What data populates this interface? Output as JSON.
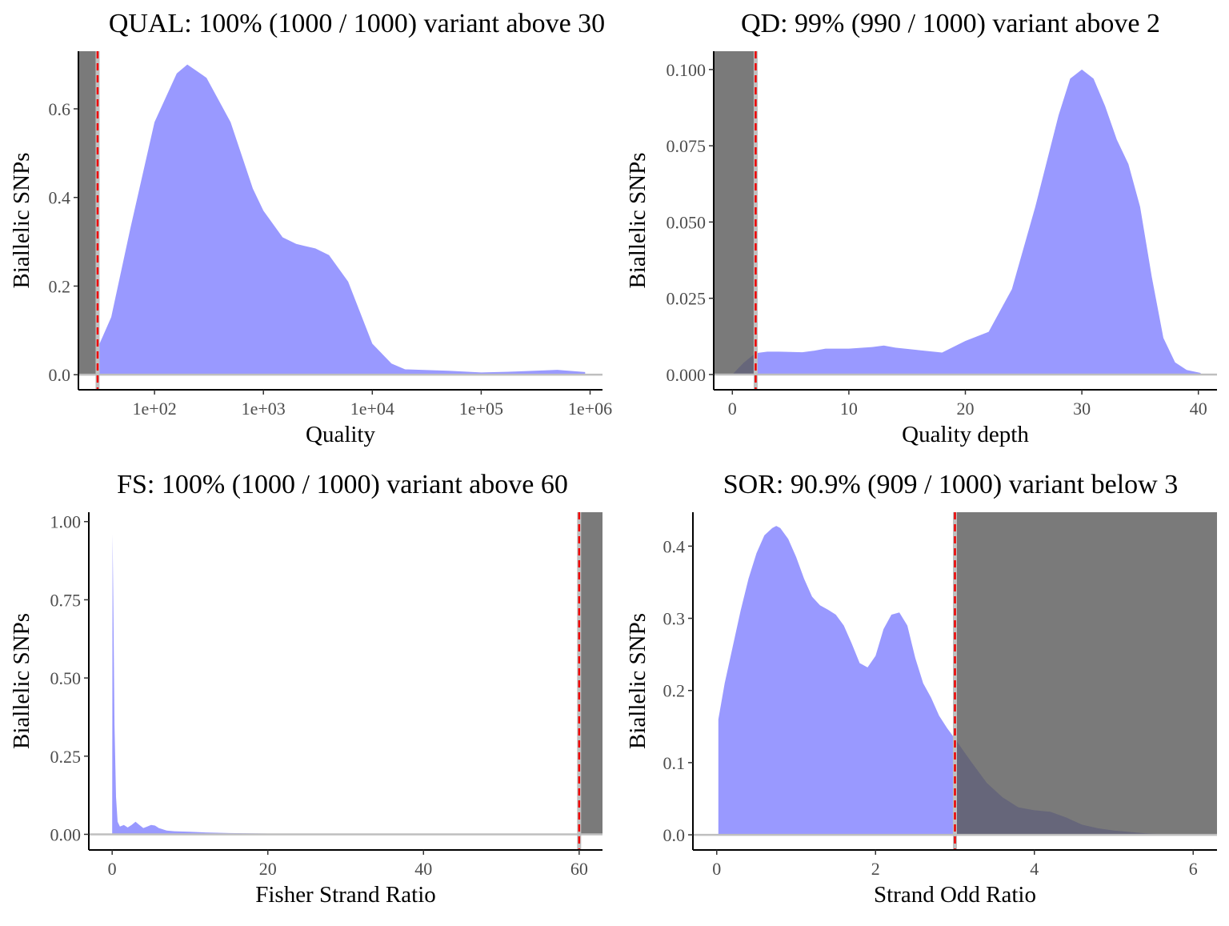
{
  "chart_data": [
    {
      "type": "area",
      "title": "QUAL: 100% (1000 / 1000) variant above 30",
      "xlabel": "Quality",
      "ylabel": "Biallelic SNPs",
      "xscale": "log10",
      "xlim": [
        20,
        1300000
      ],
      "ylim": [
        -0.034,
        0.73
      ],
      "x_ticks": [
        100,
        1000,
        10000,
        100000,
        1000000
      ],
      "x_tick_labels": [
        "1e+02",
        "1e+03",
        "1e+04",
        "1e+05",
        "1e+06"
      ],
      "y_ticks": [
        0,
        0.2,
        0.4,
        0.6
      ],
      "y_tick_labels": [
        "0.0",
        "0.2",
        "0.4",
        "0.6"
      ],
      "threshold": 30,
      "shade": "below",
      "density": {
        "x": [
          30,
          40,
          60,
          100,
          160,
          200,
          300,
          500,
          800,
          1000,
          1500,
          2000,
          3000,
          4000,
          6000,
          10000,
          15000,
          20000,
          50000,
          100000,
          200000,
          500000,
          900000
        ],
        "y": [
          0.06,
          0.13,
          0.33,
          0.57,
          0.68,
          0.7,
          0.67,
          0.57,
          0.42,
          0.37,
          0.31,
          0.295,
          0.285,
          0.27,
          0.21,
          0.07,
          0.025,
          0.012,
          0.009,
          0.005,
          0.007,
          0.011,
          0.006
        ]
      }
    },
    {
      "type": "area",
      "title": "QD: 99% (990 / 1000) variant above 2",
      "xlabel": "Quality depth",
      "ylabel": "Biallelic SNPs",
      "xlim": [
        -1.6,
        41.6
      ],
      "ylim": [
        -0.005,
        0.106
      ],
      "x_ticks": [
        0,
        10,
        20,
        30,
        40
      ],
      "x_tick_labels": [
        "0",
        "10",
        "20",
        "30",
        "40"
      ],
      "y_ticks": [
        0,
        0.025,
        0.05,
        0.075,
        0.1
      ],
      "y_tick_labels": [
        "0.000",
        "0.025",
        "0.050",
        "0.075",
        "0.100"
      ],
      "threshold": 2,
      "shade": "below",
      "density": {
        "x": [
          0,
          0.5,
          1,
          2,
          3,
          4,
          6,
          7,
          8,
          10,
          12,
          13,
          14,
          16,
          18,
          20,
          22,
          24,
          26,
          28,
          29,
          30,
          31,
          32,
          33,
          34,
          35,
          36,
          37,
          38,
          39,
          40.2
        ],
        "y": [
          0,
          0.002,
          0.004,
          0.007,
          0.0075,
          0.0075,
          0.0073,
          0.0078,
          0.0085,
          0.0085,
          0.009,
          0.0095,
          0.0088,
          0.008,
          0.0072,
          0.011,
          0.014,
          0.028,
          0.055,
          0.085,
          0.097,
          0.1,
          0.097,
          0.088,
          0.077,
          0.069,
          0.055,
          0.032,
          0.012,
          0.004,
          0.0015,
          0.0005
        ]
      }
    },
    {
      "type": "area",
      "title": "FS: 100% (1000 / 1000) variant above 60",
      "xlabel": "Fisher Strand Ratio",
      "ylabel": "Biallelic SNPs",
      "xlim": [
        -3,
        63
      ],
      "ylim": [
        -0.05,
        1.03
      ],
      "x_ticks": [
        0,
        20,
        40,
        60
      ],
      "x_tick_labels": [
        "0",
        "20",
        "40",
        "60"
      ],
      "y_ticks": [
        0,
        0.25,
        0.5,
        0.75,
        1
      ],
      "y_tick_labels": [
        "0.00",
        "0.25",
        "0.50",
        "0.75",
        "1.00"
      ],
      "threshold": 60,
      "shade": "above",
      "density": {
        "x": [
          0,
          0.05,
          0.15,
          0.3,
          0.5,
          0.7,
          1.0,
          1.5,
          2.0,
          2.5,
          3.0,
          3.5,
          4.0,
          4.5,
          5.0,
          5.5,
          6.0,
          7.0,
          8.0,
          10.0,
          12.0,
          15.0,
          18.0,
          22.0,
          27.0,
          35.0,
          45.0,
          52.0
        ],
        "y": [
          0.02,
          0.96,
          0.75,
          0.35,
          0.12,
          0.04,
          0.025,
          0.03,
          0.022,
          0.03,
          0.04,
          0.03,
          0.02,
          0.025,
          0.03,
          0.028,
          0.02,
          0.012,
          0.01,
          0.008,
          0.006,
          0.004,
          0.003,
          0.002,
          0.0015,
          0.001,
          0.001,
          0.0005
        ]
      }
    },
    {
      "type": "area",
      "title": "SOR: 90.9% (909 / 1000) variant below 3",
      "xlabel": "Strand Odd Ratio",
      "ylabel": "Biallelic SNPs",
      "xlim": [
        -0.3,
        6.3
      ],
      "ylim": [
        -0.021,
        0.447
      ],
      "x_ticks": [
        0,
        2,
        4,
        6
      ],
      "x_tick_labels": [
        "0",
        "2",
        "4",
        "6"
      ],
      "y_ticks": [
        0,
        0.1,
        0.2,
        0.3,
        0.4
      ],
      "y_tick_labels": [
        "0.0",
        "0.1",
        "0.2",
        "0.3",
        "0.4"
      ],
      "threshold": 3,
      "shade": "above",
      "density": {
        "x": [
          0.02,
          0.1,
          0.2,
          0.3,
          0.4,
          0.5,
          0.6,
          0.7,
          0.75,
          0.8,
          0.9,
          1.0,
          1.1,
          1.2,
          1.3,
          1.4,
          1.5,
          1.6,
          1.7,
          1.8,
          1.9,
          2.0,
          2.1,
          2.2,
          2.3,
          2.4,
          2.5,
          2.6,
          2.7,
          2.8,
          2.9,
          3.0,
          3.2,
          3.4,
          3.6,
          3.8,
          4.0,
          4.2,
          4.4,
          4.6,
          4.8,
          5.0,
          5.2,
          5.4,
          5.6,
          5.8,
          5.9
        ],
        "y": [
          0.16,
          0.21,
          0.26,
          0.31,
          0.355,
          0.39,
          0.415,
          0.425,
          0.428,
          0.425,
          0.41,
          0.385,
          0.355,
          0.33,
          0.318,
          0.312,
          0.305,
          0.29,
          0.265,
          0.238,
          0.232,
          0.248,
          0.285,
          0.305,
          0.308,
          0.29,
          0.245,
          0.21,
          0.19,
          0.165,
          0.148,
          0.133,
          0.102,
          0.072,
          0.052,
          0.038,
          0.034,
          0.032,
          0.024,
          0.014,
          0.009,
          0.006,
          0.004,
          0.002,
          0.001,
          0.0005,
          0.0002
        ]
      }
    }
  ],
  "colors": {
    "density_fill": "#9999ff",
    "overlap_fill": "#363699",
    "shade_fill": "#595959",
    "threshold_line": "#ee0000",
    "baseline": "#bfbfbf"
  }
}
